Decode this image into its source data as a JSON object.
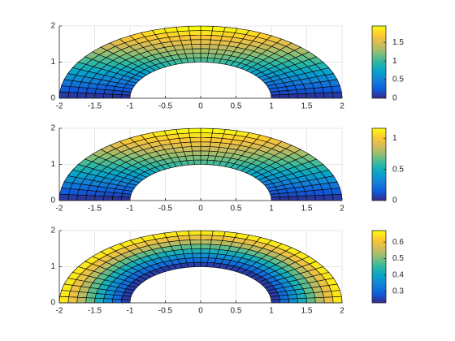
{
  "chart_data": [
    {
      "type": "mesh",
      "xlim": [
        -2,
        2
      ],
      "ylim": [
        0,
        2
      ],
      "xticks": [
        -2,
        -1.5,
        -1,
        -0.5,
        0,
        0.5,
        1,
        1.5,
        2
      ],
      "yticks": [
        0,
        1,
        2
      ],
      "grid": true,
      "colormap": [
        "#352a87",
        "#0f5cdd",
        "#1481d6",
        "#06a4ca",
        "#2eb7a4",
        "#87bf77",
        "#d1bb59",
        "#fec832",
        "#f9fb0e"
      ],
      "r": [
        1,
        1.125,
        1.25,
        1.375,
        1.5,
        1.625,
        1.75,
        1.875,
        2
      ],
      "theta": [
        0,
        5,
        10,
        15,
        20,
        25,
        30,
        35,
        40,
        45,
        50,
        55,
        60,
        65,
        70,
        75,
        80,
        85,
        90,
        95,
        100,
        105,
        110,
        115,
        120,
        125,
        130,
        135,
        140,
        145,
        150,
        155,
        160,
        165,
        170,
        175,
        180
      ],
      "clim": [
        0,
        1.94
      ],
      "cticks": [
        0,
        0.5,
        1,
        1.5
      ],
      "values": [
        [
          0.05,
          0.14,
          0.23,
          0.32,
          0.41,
          0.49,
          0.57,
          0.65,
          0.72,
          0.78,
          0.84,
          0.9,
          0.94,
          0.98,
          1.01,
          1.04,
          1.05,
          1.06,
          1.06,
          1.05,
          1.04,
          1.01,
          0.98,
          0.94,
          0.9,
          0.84,
          0.78,
          0.72,
          0.65,
          0.57,
          0.49,
          0.41,
          0.32,
          0.23,
          0.14,
          0.05
        ],
        [
          0.05,
          0.15,
          0.26,
          0.36,
          0.45,
          0.55,
          0.64,
          0.72,
          0.8,
          0.88,
          0.94,
          1,
          1.05,
          1.1,
          1.13,
          1.16,
          1.18,
          1.19,
          1.19,
          1.18,
          1.16,
          1.13,
          1.1,
          1.05,
          1,
          0.94,
          0.88,
          0.8,
          0.72,
          0.64,
          0.55,
          0.45,
          0.36,
          0.26,
          0.15,
          0.05
        ],
        [
          0.06,
          0.17,
          0.28,
          0.39,
          0.5,
          0.61,
          0.71,
          0.8,
          0.89,
          0.97,
          1.04,
          1.11,
          1.16,
          1.21,
          1.25,
          1.28,
          1.3,
          1.31,
          1.31,
          1.3,
          1.28,
          1.25,
          1.21,
          1.16,
          1.11,
          1.04,
          0.97,
          0.89,
          0.8,
          0.71,
          0.61,
          0.5,
          0.39,
          0.28,
          0.17,
          0.06
        ],
        [
          0.06,
          0.19,
          0.31,
          0.43,
          0.55,
          0.66,
          0.77,
          0.88,
          0.97,
          1.06,
          1.14,
          1.21,
          1.28,
          1.33,
          1.37,
          1.4,
          1.43,
          1.44,
          1.44,
          1.43,
          1.4,
          1.37,
          1.33,
          1.28,
          1.21,
          1.14,
          1.06,
          0.97,
          0.88,
          0.77,
          0.66,
          0.55,
          0.43,
          0.31,
          0.19,
          0.06
        ],
        [
          0.07,
          0.2,
          0.34,
          0.47,
          0.6,
          0.72,
          0.84,
          0.95,
          1.06,
          1.15,
          1.24,
          1.32,
          1.39,
          1.44,
          1.49,
          1.53,
          1.55,
          1.56,
          1.56,
          1.55,
          1.53,
          1.49,
          1.44,
          1.39,
          1.32,
          1.24,
          1.15,
          1.06,
          0.95,
          0.84,
          0.72,
          0.6,
          0.47,
          0.34,
          0.2,
          0.07
        ],
        [
          0.07,
          0.22,
          0.37,
          0.51,
          0.65,
          0.78,
          0.91,
          1.03,
          1.14,
          1.24,
          1.34,
          1.42,
          1.5,
          1.56,
          1.61,
          1.65,
          1.67,
          1.69,
          1.69,
          1.67,
          1.65,
          1.61,
          1.56,
          1.5,
          1.42,
          1.34,
          1.24,
          1.14,
          1.03,
          0.91,
          0.78,
          0.65,
          0.51,
          0.37,
          0.22,
          0.07
        ],
        [
          0.08,
          0.24,
          0.39,
          0.55,
          0.69,
          0.84,
          0.97,
          1.1,
          1.22,
          1.34,
          1.44,
          1.53,
          1.61,
          1.67,
          1.73,
          1.77,
          1.8,
          1.81,
          1.81,
          1.8,
          1.77,
          1.73,
          1.67,
          1.61,
          1.53,
          1.44,
          1.34,
          1.22,
          1.1,
          0.97,
          0.84,
          0.69,
          0.55,
          0.39,
          0.24,
          0.08
        ],
        [
          0.08,
          0.25,
          0.42,
          0.58,
          0.74,
          0.89,
          1.04,
          1.18,
          1.31,
          1.43,
          1.54,
          1.63,
          1.72,
          1.79,
          1.85,
          1.89,
          1.92,
          1.94,
          1.94,
          1.92,
          1.89,
          1.85,
          1.79,
          1.72,
          1.63,
          1.54,
          1.43,
          1.31,
          1.18,
          1.04,
          0.89,
          0.74,
          0.58,
          0.42,
          0.25,
          0.08
        ]
      ]
    },
    {
      "type": "mesh",
      "xlim": [
        -2,
        2
      ],
      "ylim": [
        0,
        2
      ],
      "xticks": [
        -2,
        -1.5,
        -1,
        -0.5,
        0,
        0.5,
        1,
        1.5,
        2
      ],
      "yticks": [
        0,
        1,
        2
      ],
      "grid": true,
      "colormap": [
        "#352a87",
        "#0f5cdd",
        "#1481d6",
        "#06a4ca",
        "#2eb7a4",
        "#87bf77",
        "#d1bb59",
        "#fec832",
        "#f9fb0e"
      ],
      "r": [
        1,
        1.125,
        1.25,
        1.375,
        1.5,
        1.625,
        1.75,
        1.875,
        2
      ],
      "theta": [
        0,
        5,
        10,
        15,
        20,
        25,
        30,
        35,
        40,
        45,
        50,
        55,
        60,
        65,
        70,
        75,
        80,
        85,
        90,
        95,
        100,
        105,
        110,
        115,
        120,
        125,
        130,
        135,
        140,
        145,
        150,
        155,
        160,
        165,
        170,
        175,
        180
      ],
      "clim": [
        0,
        1.16
      ],
      "cticks": [
        0,
        0.5,
        1
      ],
      "values": [
        [
          0.03,
          0.08,
          0.14,
          0.19,
          0.24,
          0.29,
          0.34,
          0.39,
          0.43,
          0.47,
          0.51,
          0.54,
          0.57,
          0.59,
          0.61,
          0.62,
          0.63,
          0.64,
          0.64,
          0.63,
          0.62,
          0.61,
          0.59,
          0.57,
          0.54,
          0.51,
          0.47,
          0.43,
          0.39,
          0.34,
          0.29,
          0.24,
          0.19,
          0.14,
          0.08,
          0.03
        ],
        [
          0.03,
          0.09,
          0.15,
          0.21,
          0.27,
          0.33,
          0.38,
          0.43,
          0.48,
          0.53,
          0.57,
          0.6,
          0.63,
          0.66,
          0.68,
          0.7,
          0.71,
          0.71,
          0.71,
          0.71,
          0.7,
          0.68,
          0.66,
          0.63,
          0.6,
          0.57,
          0.53,
          0.48,
          0.43,
          0.38,
          0.33,
          0.27,
          0.21,
          0.15,
          0.09,
          0.03
        ],
        [
          0.03,
          0.1,
          0.17,
          0.24,
          0.3,
          0.36,
          0.42,
          0.48,
          0.53,
          0.58,
          0.62,
          0.66,
          0.7,
          0.73,
          0.75,
          0.77,
          0.78,
          0.79,
          0.79,
          0.78,
          0.77,
          0.75,
          0.73,
          0.7,
          0.66,
          0.62,
          0.58,
          0.53,
          0.48,
          0.42,
          0.36,
          0.3,
          0.24,
          0.17,
          0.1,
          0.03
        ],
        [
          0.04,
          0.11,
          0.19,
          0.26,
          0.33,
          0.4,
          0.46,
          0.53,
          0.58,
          0.64,
          0.68,
          0.73,
          0.77,
          0.8,
          0.82,
          0.84,
          0.86,
          0.86,
          0.86,
          0.86,
          0.84,
          0.82,
          0.8,
          0.77,
          0.73,
          0.68,
          0.64,
          0.58,
          0.53,
          0.46,
          0.4,
          0.33,
          0.26,
          0.19,
          0.11,
          0.04
        ],
        [
          0.04,
          0.12,
          0.2,
          0.28,
          0.36,
          0.43,
          0.5,
          0.57,
          0.63,
          0.69,
          0.74,
          0.79,
          0.83,
          0.87,
          0.89,
          0.92,
          0.93,
          0.94,
          0.94,
          0.93,
          0.92,
          0.89,
          0.87,
          0.83,
          0.79,
          0.74,
          0.69,
          0.63,
          0.57,
          0.5,
          0.43,
          0.36,
          0.28,
          0.2,
          0.12,
          0.04
        ],
        [
          0.04,
          0.13,
          0.22,
          0.3,
          0.39,
          0.47,
          0.54,
          0.62,
          0.68,
          0.75,
          0.8,
          0.85,
          0.9,
          0.94,
          0.97,
          0.99,
          1,
          1.01,
          1.01,
          1,
          0.99,
          0.97,
          0.94,
          0.9,
          0.85,
          0.8,
          0.75,
          0.68,
          0.62,
          0.54,
          0.47,
          0.39,
          0.3,
          0.22,
          0.13,
          0.04
        ],
        [
          0.05,
          0.14,
          0.24,
          0.33,
          0.42,
          0.5,
          0.58,
          0.66,
          0.73,
          0.8,
          0.86,
          0.92,
          0.96,
          1,
          1.04,
          1.06,
          1.08,
          1.09,
          1.09,
          1.08,
          1.06,
          1.04,
          1,
          0.96,
          0.92,
          0.86,
          0.8,
          0.73,
          0.66,
          0.58,
          0.5,
          0.42,
          0.33,
          0.24,
          0.14,
          0.05
        ],
        [
          0.05,
          0.15,
          0.25,
          0.35,
          0.44,
          0.54,
          0.62,
          0.71,
          0.79,
          0.86,
          0.92,
          0.98,
          1.03,
          1.07,
          1.11,
          1.13,
          1.15,
          1.16,
          1.16,
          1.15,
          1.13,
          1.11,
          1.07,
          1.03,
          0.98,
          0.92,
          0.86,
          0.79,
          0.71,
          0.62,
          0.54,
          0.44,
          0.35,
          0.25,
          0.15,
          0.05
        ]
      ]
    },
    {
      "type": "mesh",
      "xlim": [
        -2,
        2
      ],
      "ylim": [
        0,
        2
      ],
      "xticks": [
        -2,
        -1.5,
        -1,
        -0.5,
        0,
        0.5,
        1,
        1.5,
        2
      ],
      "yticks": [
        0,
        1,
        2
      ],
      "grid": true,
      "colormap": [
        "#352a87",
        "#0f5cdd",
        "#1481d6",
        "#06a4ca",
        "#2eb7a4",
        "#87bf77",
        "#d1bb59",
        "#fec832",
        "#f9fb0e"
      ],
      "r": [
        1,
        1.125,
        1.25,
        1.375,
        1.5,
        1.625,
        1.75,
        1.875,
        2
      ],
      "theta": [
        0,
        5,
        10,
        15,
        20,
        25,
        30,
        35,
        40,
        45,
        50,
        55,
        60,
        65,
        70,
        75,
        80,
        85,
        90,
        95,
        100,
        105,
        110,
        115,
        120,
        125,
        130,
        135,
        140,
        145,
        150,
        155,
        160,
        165,
        170,
        175,
        180
      ],
      "clim": [
        0.23,
        0.67
      ],
      "cticks": [
        0.3,
        0.4,
        0.5,
        0.6
      ],
      "values": [
        [
          0.25,
          0.25,
          0.25,
          0.25,
          0.25,
          0.25,
          0.25,
          0.25,
          0.25,
          0.25,
          0.25,
          0.25,
          0.25,
          0.25,
          0.25,
          0.25,
          0.25,
          0.25,
          0.25,
          0.25,
          0.25,
          0.25,
          0.25,
          0.25,
          0.25,
          0.25,
          0.25,
          0.25,
          0.25,
          0.25,
          0.25,
          0.25,
          0.25,
          0.25,
          0.25,
          0.25
        ],
        [
          0.31,
          0.31,
          0.31,
          0.31,
          0.31,
          0.31,
          0.31,
          0.31,
          0.31,
          0.31,
          0.31,
          0.31,
          0.31,
          0.31,
          0.31,
          0.31,
          0.31,
          0.31,
          0.31,
          0.31,
          0.31,
          0.31,
          0.31,
          0.31,
          0.31,
          0.31,
          0.31,
          0.31,
          0.31,
          0.31,
          0.31,
          0.31,
          0.31,
          0.31,
          0.31,
          0.31
        ],
        [
          0.36,
          0.36,
          0.36,
          0.36,
          0.36,
          0.36,
          0.36,
          0.36,
          0.36,
          0.36,
          0.36,
          0.36,
          0.36,
          0.36,
          0.36,
          0.36,
          0.36,
          0.36,
          0.36,
          0.36,
          0.36,
          0.36,
          0.36,
          0.36,
          0.36,
          0.36,
          0.36,
          0.36,
          0.36,
          0.36,
          0.36,
          0.36,
          0.36,
          0.36,
          0.36,
          0.36
        ],
        [
          0.42,
          0.42,
          0.42,
          0.42,
          0.42,
          0.42,
          0.42,
          0.42,
          0.42,
          0.42,
          0.42,
          0.42,
          0.42,
          0.42,
          0.42,
          0.42,
          0.42,
          0.42,
          0.42,
          0.42,
          0.42,
          0.42,
          0.42,
          0.42,
          0.42,
          0.42,
          0.42,
          0.42,
          0.42,
          0.42,
          0.42,
          0.42,
          0.42,
          0.42,
          0.42,
          0.42
        ],
        [
          0.48,
          0.48,
          0.48,
          0.48,
          0.48,
          0.48,
          0.48,
          0.48,
          0.48,
          0.48,
          0.48,
          0.48,
          0.48,
          0.48,
          0.48,
          0.48,
          0.48,
          0.48,
          0.48,
          0.48,
          0.48,
          0.48,
          0.48,
          0.48,
          0.48,
          0.48,
          0.48,
          0.48,
          0.48,
          0.48,
          0.48,
          0.48,
          0.48,
          0.48,
          0.48,
          0.48
        ],
        [
          0.54,
          0.54,
          0.54,
          0.54,
          0.54,
          0.54,
          0.54,
          0.54,
          0.54,
          0.54,
          0.54,
          0.54,
          0.54,
          0.54,
          0.54,
          0.54,
          0.54,
          0.54,
          0.54,
          0.54,
          0.54,
          0.54,
          0.54,
          0.54,
          0.54,
          0.54,
          0.54,
          0.54,
          0.54,
          0.54,
          0.54,
          0.54,
          0.54,
          0.54,
          0.54,
          0.54
        ],
        [
          0.59,
          0.59,
          0.59,
          0.59,
          0.59,
          0.59,
          0.59,
          0.59,
          0.59,
          0.59,
          0.59,
          0.59,
          0.59,
          0.59,
          0.59,
          0.59,
          0.59,
          0.59,
          0.59,
          0.59,
          0.59,
          0.59,
          0.59,
          0.59,
          0.59,
          0.59,
          0.59,
          0.59,
          0.59,
          0.59,
          0.59,
          0.59,
          0.59,
          0.59,
          0.59,
          0.59
        ],
        [
          0.65,
          0.65,
          0.65,
          0.65,
          0.65,
          0.65,
          0.65,
          0.65,
          0.65,
          0.65,
          0.65,
          0.65,
          0.65,
          0.65,
          0.65,
          0.65,
          0.65,
          0.65,
          0.65,
          0.65,
          0.65,
          0.65,
          0.65,
          0.65,
          0.65,
          0.65,
          0.65,
          0.65,
          0.65,
          0.65,
          0.65,
          0.65,
          0.65,
          0.65,
          0.65,
          0.65
        ]
      ]
    }
  ]
}
